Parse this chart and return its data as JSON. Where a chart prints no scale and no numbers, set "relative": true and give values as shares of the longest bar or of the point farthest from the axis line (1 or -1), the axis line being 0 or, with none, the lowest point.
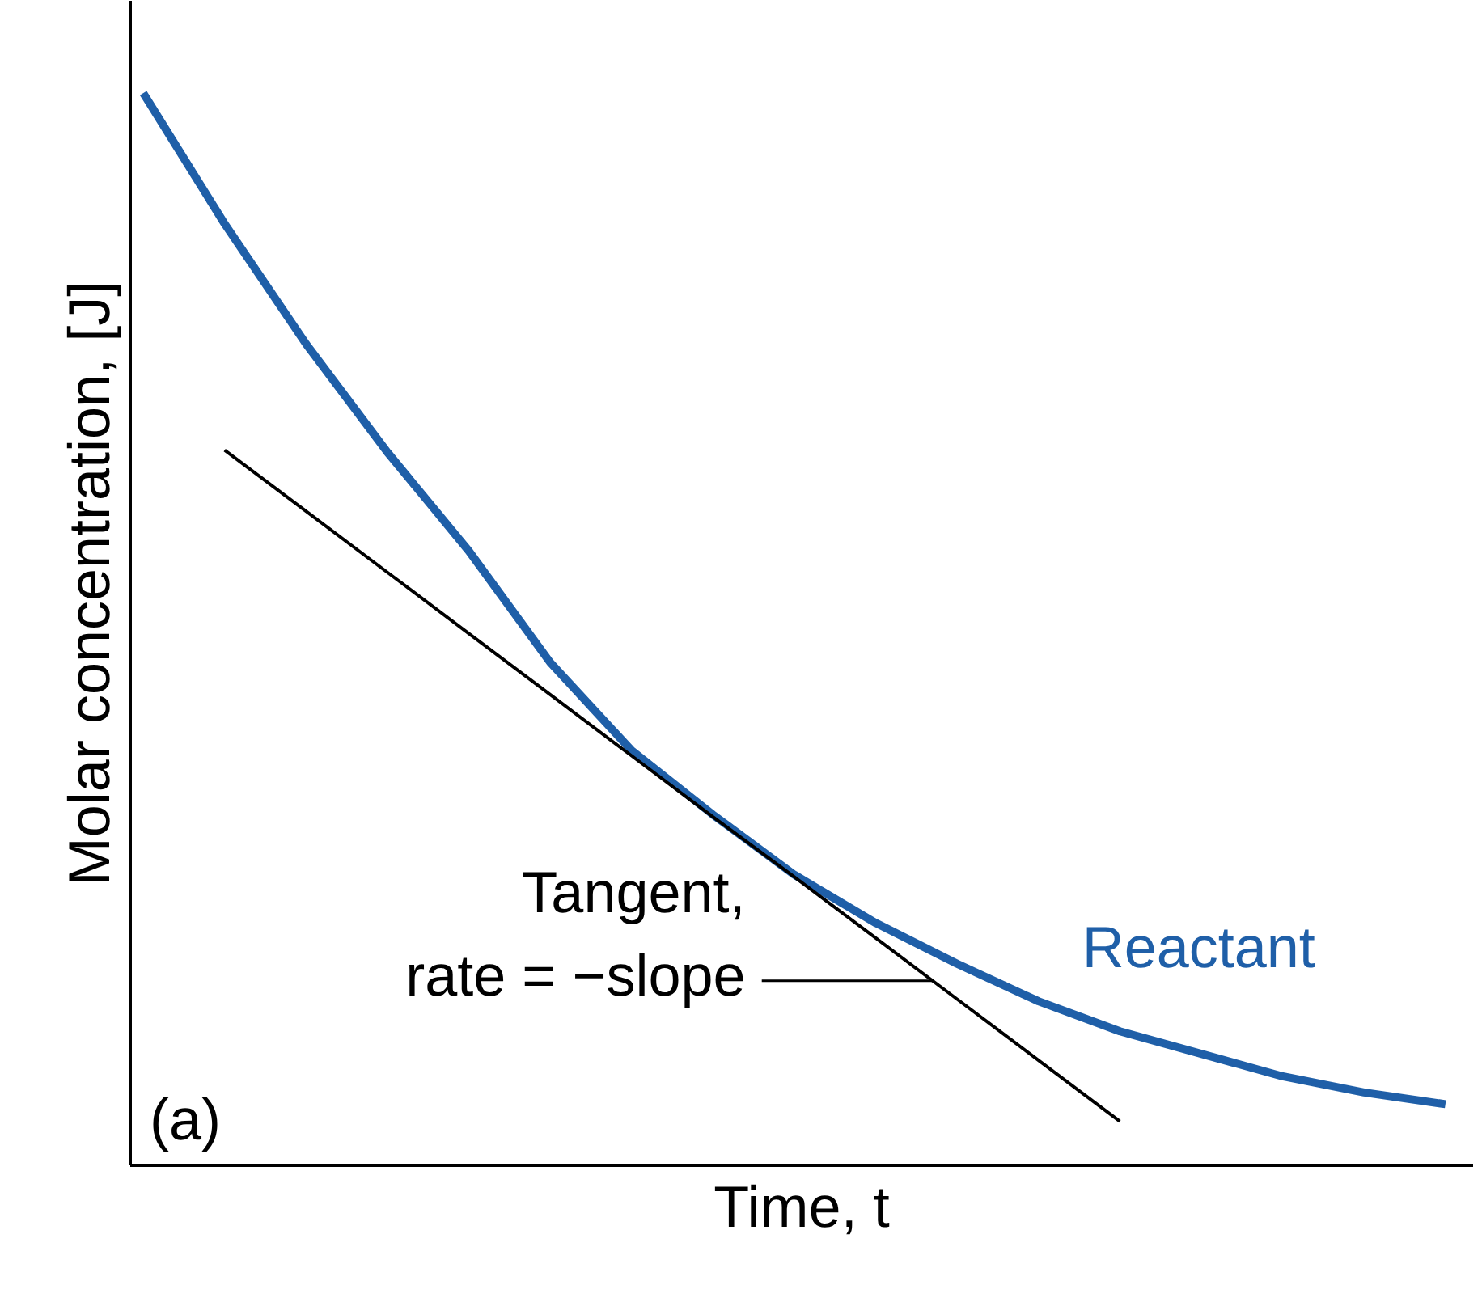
{
  "chart_data": {
    "type": "line",
    "relative": true,
    "xlabel": "Time, t",
    "ylabel": "Molar concentration, [J]",
    "categories": [
      null,
      null,
      null,
      null,
      null,
      null,
      null,
      null,
      null,
      null,
      null,
      null,
      null,
      null,
      null,
      null,
      null
    ],
    "series": [
      {
        "name": "Reactant",
        "color": "#1f5fa8",
        "values": [
          1.0,
          0.878,
          0.766,
          0.665,
          0.573,
          0.469,
          0.387,
          0.327,
          0.271,
          0.226,
          0.188,
          0.153,
          0.125,
          0.104,
          0.083,
          0.068,
          0.057
        ]
      },
      {
        "name": "Tangent, rate = −slope",
        "color": "#000000",
        "values": [
          null,
          0.667,
          0.61,
          0.553,
          0.496,
          0.439,
          0.382,
          0.325,
          0.269,
          0.212,
          0.155,
          0.098,
          0.041,
          null,
          null,
          null,
          null
        ]
      }
    ],
    "annotations": [
      "(a)"
    ]
  }
}
